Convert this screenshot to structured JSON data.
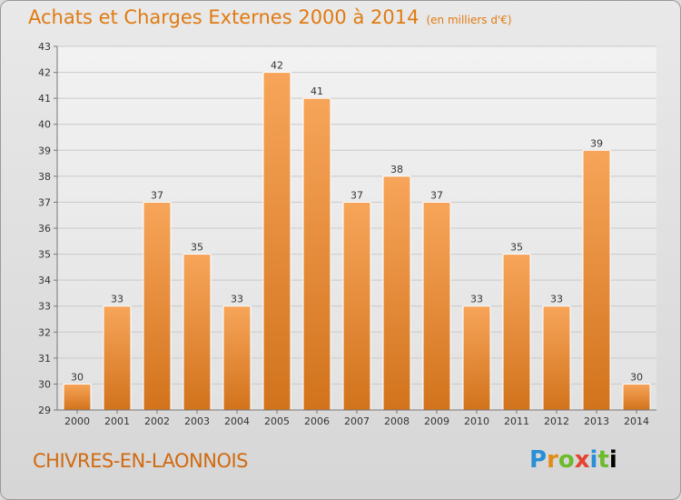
{
  "header": {
    "title": "Achats et Charges Externes 2000 à 2014",
    "subtitle": "(en milliers d'€)"
  },
  "footer": {
    "location": "CHIVRES-EN-LAONNOIS",
    "logo_letters": [
      "P",
      "r",
      "o",
      "x",
      "i",
      "t",
      "i"
    ]
  },
  "colors": {
    "bar_top": "#f7a55a",
    "bar_bottom": "#d2731c",
    "title": "#e07a10",
    "location": "#d06a10"
  },
  "chart_data": {
    "type": "bar",
    "title": "Achats et Charges Externes 2000 à 2014",
    "subtitle": "(en milliers d'€)",
    "categories": [
      "2000",
      "2001",
      "2002",
      "2003",
      "2004",
      "2005",
      "2006",
      "2007",
      "2008",
      "2009",
      "2010",
      "2011",
      "2012",
      "2013",
      "2014"
    ],
    "values": [
      30,
      33,
      37,
      35,
      33,
      42,
      41,
      37,
      38,
      37,
      33,
      35,
      33,
      39,
      30
    ],
    "ylim": [
      29,
      43
    ],
    "yticks": [
      29,
      30,
      31,
      32,
      33,
      34,
      35,
      36,
      37,
      38,
      39,
      40,
      41,
      42,
      43
    ],
    "grid": true,
    "legend": "none",
    "data_labels": true
  }
}
